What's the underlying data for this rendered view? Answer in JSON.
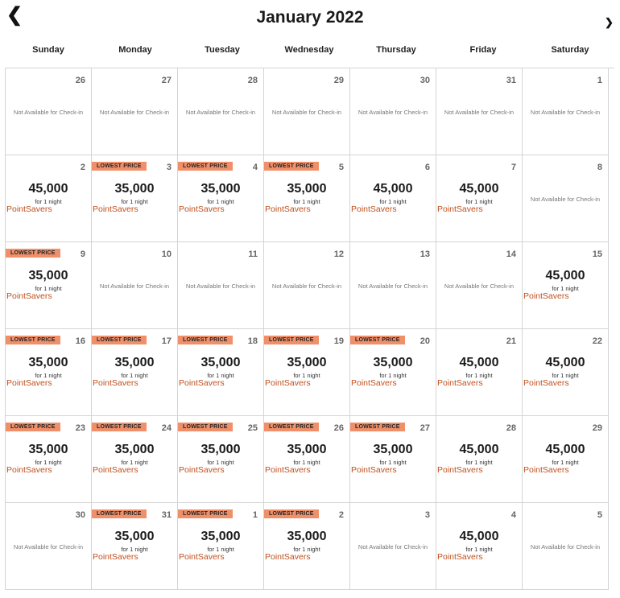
{
  "header": {
    "title": "January 2022",
    "prev_icon": "chevron-left-icon",
    "next_icon": "chevron-right-icon"
  },
  "weekdays": [
    "Sunday",
    "Monday",
    "Tuesday",
    "Wednesday",
    "Thursday",
    "Friday",
    "Saturday"
  ],
  "labels": {
    "lowest": "LOWEST PRICE",
    "per_night": "for 1 night",
    "program": "PointSavers",
    "unavailable": "Not Available for Check-in"
  },
  "colors": {
    "badge": "#f0906a",
    "program": "#c0501e"
  },
  "weeks": [
    [
      {
        "day": "26"
      },
      {
        "day": "27"
      },
      {
        "day": "28"
      },
      {
        "day": "29"
      },
      {
        "day": "30"
      },
      {
        "day": "31"
      },
      {
        "day": "1"
      }
    ],
    [
      {
        "day": "2",
        "price": "45,000"
      },
      {
        "day": "3",
        "price": "35,000",
        "lowest": true
      },
      {
        "day": "4",
        "price": "35,000",
        "lowest": true
      },
      {
        "day": "5",
        "price": "35,000",
        "lowest": true
      },
      {
        "day": "6",
        "price": "45,000"
      },
      {
        "day": "7",
        "price": "45,000"
      },
      {
        "day": "8"
      }
    ],
    [
      {
        "day": "9",
        "price": "35,000",
        "lowest": true
      },
      {
        "day": "10"
      },
      {
        "day": "11"
      },
      {
        "day": "12"
      },
      {
        "day": "13"
      },
      {
        "day": "14"
      },
      {
        "day": "15",
        "price": "45,000"
      }
    ],
    [
      {
        "day": "16",
        "price": "35,000",
        "lowest": true
      },
      {
        "day": "17",
        "price": "35,000",
        "lowest": true
      },
      {
        "day": "18",
        "price": "35,000",
        "lowest": true
      },
      {
        "day": "19",
        "price": "35,000",
        "lowest": true
      },
      {
        "day": "20",
        "price": "35,000",
        "lowest": true
      },
      {
        "day": "21",
        "price": "45,000"
      },
      {
        "day": "22",
        "price": "45,000"
      }
    ],
    [
      {
        "day": "23",
        "price": "35,000",
        "lowest": true
      },
      {
        "day": "24",
        "price": "35,000",
        "lowest": true
      },
      {
        "day": "25",
        "price": "35,000",
        "lowest": true
      },
      {
        "day": "26",
        "price": "35,000",
        "lowest": true
      },
      {
        "day": "27",
        "price": "35,000",
        "lowest": true
      },
      {
        "day": "28",
        "price": "45,000"
      },
      {
        "day": "29",
        "price": "45,000"
      }
    ],
    [
      {
        "day": "30"
      },
      {
        "day": "31",
        "price": "35,000",
        "lowest": true
      },
      {
        "day": "1",
        "price": "35,000",
        "lowest": true
      },
      {
        "day": "2",
        "price": "35,000",
        "lowest": true
      },
      {
        "day": "3"
      },
      {
        "day": "4",
        "price": "45,000"
      },
      {
        "day": "5"
      }
    ]
  ]
}
